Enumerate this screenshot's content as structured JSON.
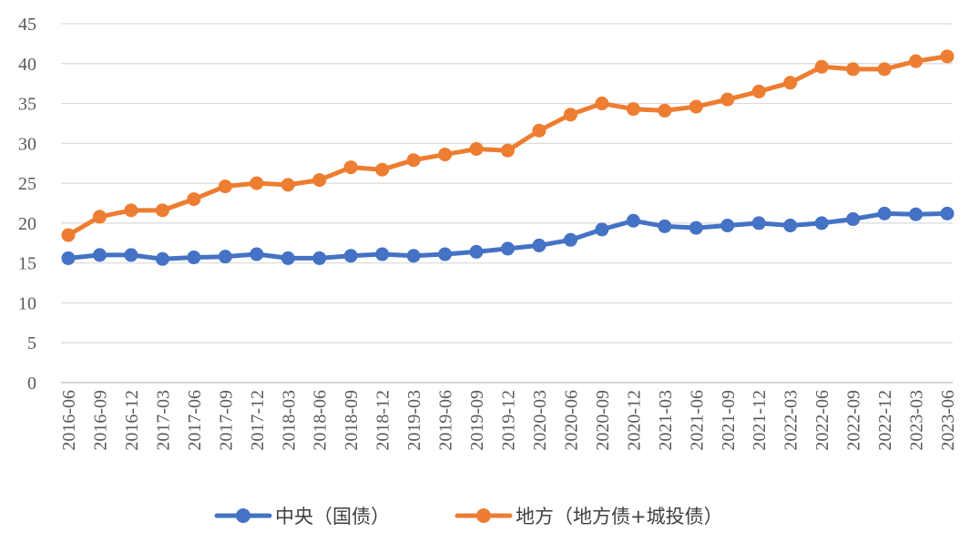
{
  "chart_data": {
    "type": "line",
    "title": "",
    "xlabel": "",
    "ylabel": "",
    "ylim": [
      0,
      45
    ],
    "yticks": [
      0,
      5,
      10,
      15,
      20,
      25,
      30,
      35,
      40,
      45
    ],
    "grid": "horizontal",
    "legend_position": "bottom",
    "categories": [
      "2016-06",
      "2016-09",
      "2016-12",
      "2017-03",
      "2017-06",
      "2017-09",
      "2017-12",
      "2018-03",
      "2018-06",
      "2018-09",
      "2018-12",
      "2019-03",
      "2019-06",
      "2019-09",
      "2019-12",
      "2020-03",
      "2020-06",
      "2020-09",
      "2020-12",
      "2021-03",
      "2021-06",
      "2021-09",
      "2021-12",
      "2022-03",
      "2022-06",
      "2022-09",
      "2022-12",
      "2023-03",
      "2023-06"
    ],
    "series": [
      {
        "name": "中央（国债）",
        "color": "#4472C4",
        "values": [
          15.6,
          16.0,
          16.0,
          15.5,
          15.7,
          15.8,
          16.1,
          15.6,
          15.6,
          15.9,
          16.1,
          15.9,
          16.1,
          16.4,
          16.8,
          17.2,
          17.9,
          19.2,
          20.3,
          19.6,
          19.4,
          19.7,
          20.0,
          19.7,
          20.0,
          20.5,
          21.2,
          21.1,
          21.2
        ]
      },
      {
        "name": "地方（地方债+城投债）",
        "color": "#ED7D31",
        "values": [
          18.5,
          20.8,
          21.6,
          21.6,
          23.0,
          24.6,
          25.0,
          24.8,
          25.4,
          27.0,
          26.7,
          27.9,
          28.6,
          29.3,
          29.1,
          31.6,
          33.6,
          35.0,
          34.3,
          34.1,
          34.6,
          35.5,
          36.5,
          37.6,
          39.6,
          39.3,
          39.3,
          40.3,
          40.9
        ]
      }
    ]
  }
}
